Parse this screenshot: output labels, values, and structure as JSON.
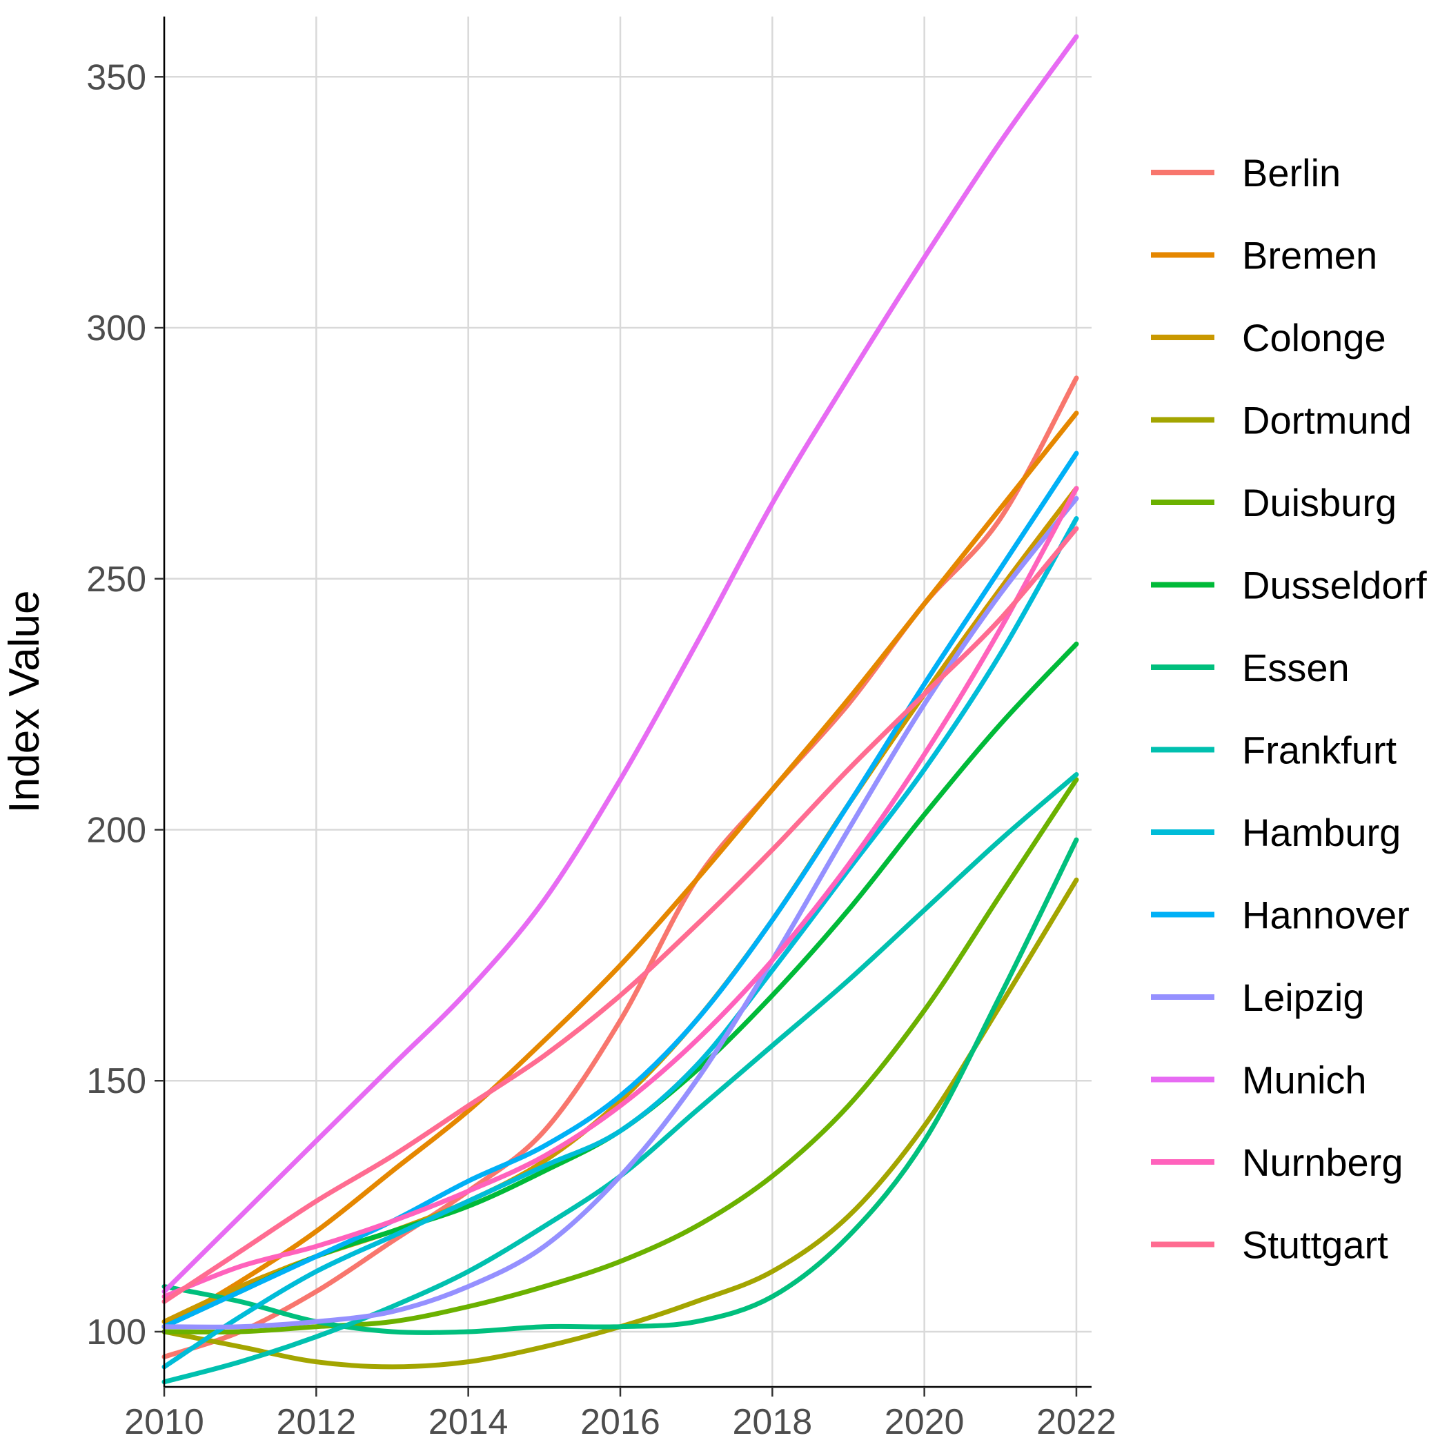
{
  "chart_data": {
    "type": "line",
    "xlabel": "",
    "ylabel": "Index Value",
    "xlim": [
      2010,
      2022.2
    ],
    "ylim": [
      89,
      362
    ],
    "x_ticks": [
      2010,
      2012,
      2014,
      2016,
      2018,
      2020,
      2022
    ],
    "y_ticks": [
      100,
      150,
      200,
      250,
      300,
      350
    ],
    "grid": true,
    "legend_position": "right",
    "x": [
      2010,
      2011,
      2012,
      2013,
      2014,
      2015,
      2016,
      2017,
      2018,
      2019,
      2020,
      2021,
      2022
    ],
    "series": [
      {
        "name": "Berlin",
        "color": "#F8766D",
        "values": [
          95,
          100,
          108,
          118,
          128,
          140,
          162,
          190,
          208,
          225,
          245,
          262,
          290
        ]
      },
      {
        "name": "Bremen",
        "color": "#E58700",
        "values": [
          101,
          110,
          120,
          132,
          144,
          158,
          173,
          190,
          208,
          226,
          245,
          264,
          283
        ]
      },
      {
        "name": "Colonge",
        "color": "#C99800",
        "values": [
          102,
          109,
          115,
          120,
          126,
          134,
          146,
          162,
          182,
          205,
          227,
          248,
          268
        ]
      },
      {
        "name": "Dortmund",
        "color": "#A3A500",
        "values": [
          100,
          97,
          94,
          93,
          94,
          97,
          101,
          106,
          112,
          123,
          141,
          165,
          190
        ]
      },
      {
        "name": "Duisburg",
        "color": "#6BB100",
        "values": [
          100,
          100,
          101,
          102,
          105,
          109,
          114,
          121,
          131,
          145,
          164,
          187,
          210
        ]
      },
      {
        "name": "Dusseldorf",
        "color": "#00BA38",
        "values": [
          101,
          108,
          115,
          120,
          125,
          132,
          140,
          152,
          167,
          184,
          203,
          221,
          237
        ]
      },
      {
        "name": "Essen",
        "color": "#00BF7D",
        "values": [
          109,
          106,
          102,
          100,
          100,
          101,
          101,
          102,
          107,
          119,
          138,
          167,
          198
        ]
      },
      {
        "name": "Frankfurt",
        "color": "#00C0AF",
        "values": [
          90,
          94,
          99,
          105,
          112,
          121,
          131,
          144,
          157,
          170,
          184,
          198,
          211
        ]
      },
      {
        "name": "Hamburg",
        "color": "#00BCD8",
        "values": [
          93,
          103,
          112,
          119,
          126,
          133,
          140,
          153,
          172,
          192,
          212,
          235,
          262
        ]
      },
      {
        "name": "Hannover",
        "color": "#00B0F6",
        "values": [
          101,
          108,
          115,
          122,
          130,
          137,
          147,
          162,
          182,
          205,
          229,
          252,
          275
        ]
      },
      {
        "name": "Leipzig",
        "color": "#9590FF",
        "values": [
          101,
          101,
          102,
          104,
          109,
          117,
          131,
          150,
          174,
          200,
          225,
          247,
          266
        ]
      },
      {
        "name": "Munich",
        "color": "#E76BF3",
        "values": [
          108,
          123,
          138,
          153,
          168,
          186,
          210,
          237,
          265,
          290,
          314,
          337,
          358
        ]
      },
      {
        "name": "Nurnberg",
        "color": "#FF62BC",
        "values": [
          107,
          113,
          117,
          122,
          128,
          135,
          145,
          158,
          174,
          193,
          215,
          240,
          268
        ]
      },
      {
        "name": "Stuttgart",
        "color": "#FF6C91",
        "values": [
          106,
          116,
          126,
          135,
          145,
          155,
          167,
          181,
          196,
          212,
          227,
          242,
          260
        ]
      }
    ]
  }
}
